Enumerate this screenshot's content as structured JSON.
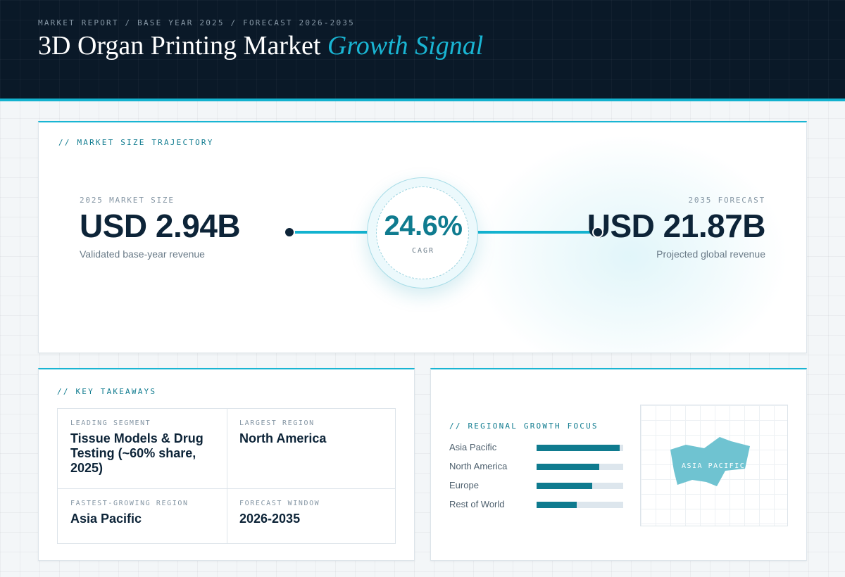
{
  "header": {
    "breadcrumb": "MARKET REPORT / BASE YEAR 2025 / FORECAST 2026-2035",
    "title_main": "3D Organ Printing Market",
    "title_accent": "Growth Signal"
  },
  "trajectory": {
    "section_label": "// MARKET SIZE TRAJECTORY",
    "base": {
      "label": "2025 MARKET SIZE",
      "value": "USD 2.94B",
      "caption": "Validated base-year revenue"
    },
    "cagr": {
      "value": "24.6%",
      "label": "CAGR"
    },
    "forecast": {
      "label": "2035 FORECAST",
      "value": "USD 21.87B",
      "caption": "Projected global revenue"
    }
  },
  "takeaways": {
    "section_label": "// KEY TAKEAWAYS",
    "items": [
      {
        "label": "LEADING SEGMENT",
        "value": "Tissue Models & Drug Testing (~60% share, 2025)"
      },
      {
        "label": "LARGEST REGION",
        "value": "North America"
      },
      {
        "label": "FASTEST-GROWING REGION",
        "value": "Asia Pacific"
      },
      {
        "label": "FORECAST WINDOW",
        "value": "2026-2035"
      }
    ]
  },
  "regional": {
    "section_label": "// REGIONAL GROWTH FOCUS",
    "bars": [
      {
        "name": "Asia Pacific",
        "level": 0.96
      },
      {
        "name": "North America",
        "level": 0.72
      },
      {
        "name": "Europe",
        "level": 0.64
      },
      {
        "name": "Rest of World",
        "level": 0.46
      }
    ],
    "map_label": "ASIA PACIFIC",
    "colors": {
      "bar_fill": "#0f7b8f",
      "bar_track": "#dde6ed",
      "map_highlight": "#6fc3d1"
    }
  },
  "colors": {
    "header_bg": "#0a1928",
    "accent": "#19b5d3",
    "navy_text": "#0d2438",
    "teal_text": "#0f7b8f"
  }
}
